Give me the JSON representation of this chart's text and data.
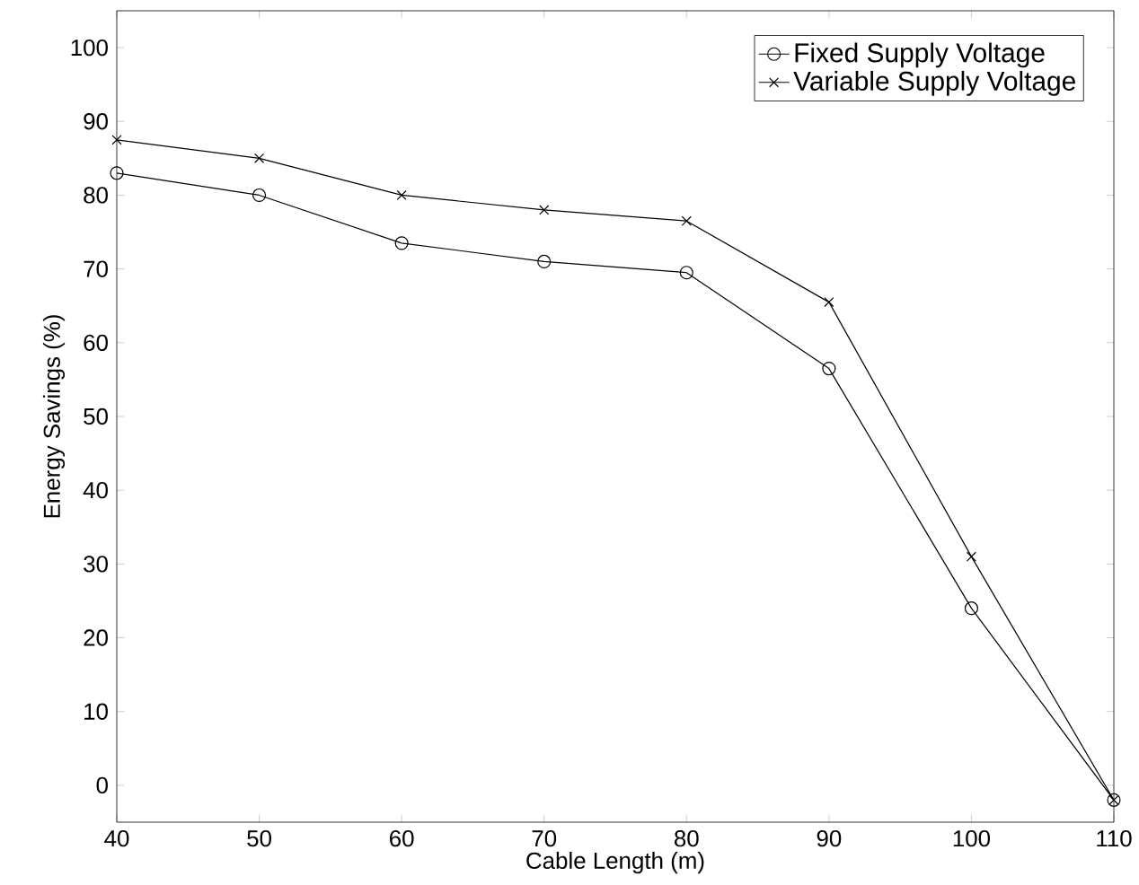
{
  "chart_data": {
    "type": "line",
    "xlabel": "Cable Length (m)",
    "ylabel": "Energy Savings (%)",
    "x": [
      40,
      50,
      60,
      70,
      80,
      90,
      100,
      110
    ],
    "series": [
      {
        "name": "Fixed Supply Voltage",
        "color": "#000000",
        "marker": "circle",
        "values": [
          83,
          80,
          73.5,
          71,
          69.5,
          56.5,
          24,
          -2
        ]
      },
      {
        "name": "Variable Supply Voltage",
        "color": "#000000",
        "marker": "cross",
        "values": [
          87.5,
          85,
          80,
          78,
          76.5,
          65.5,
          31,
          -2
        ]
      }
    ],
    "xlim": [
      40,
      110
    ],
    "xticks": [
      40,
      50,
      60,
      70,
      80,
      90,
      100,
      110
    ],
    "ylim": [
      -5,
      105
    ],
    "yticks": [
      0,
      10,
      20,
      30,
      40,
      50,
      60,
      70,
      80,
      90,
      100
    ],
    "grid": false,
    "legend": "top right",
    "line_style": "solid"
  }
}
